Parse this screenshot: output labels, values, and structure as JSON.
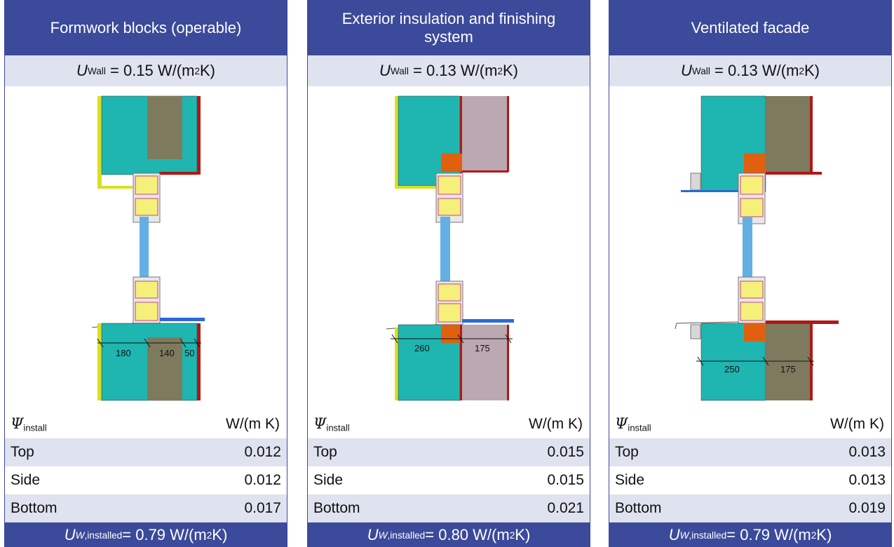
{
  "panels": [
    {
      "title": "Formwork blocks (operable)",
      "u_wall": {
        "sym": "U",
        "sub": "Wall",
        "value": "= 0.15 W/(m",
        "exp": "2",
        "tail": " K)"
      },
      "dims": [
        "180",
        "140",
        "50"
      ],
      "psi": {
        "sym": "Ψ",
        "sub": "install",
        "unit": "W/(m K)"
      },
      "rows": [
        {
          "label": "Top",
          "value": "0.012"
        },
        {
          "label": "Side",
          "value": "0.012"
        },
        {
          "label": "Bottom",
          "value": "0.017"
        }
      ],
      "u_installed": {
        "sym": "U",
        "sub1": "W",
        "sub2": ",installed",
        "value": " = 0.79 W/(m",
        "exp": "2",
        "tail": " K)"
      }
    },
    {
      "title": "Exterior insulation and finishing system",
      "u_wall": {
        "sym": "U",
        "sub": "Wall",
        "value": "= 0.13 W/(m",
        "exp": "2",
        "tail": " K)"
      },
      "dims": [
        "260",
        "175"
      ],
      "psi": {
        "sym": "Ψ",
        "sub": "install",
        "unit": "W/(m K)"
      },
      "rows": [
        {
          "label": "Top",
          "value": "0.015"
        },
        {
          "label": "Side",
          "value": "0.015"
        },
        {
          "label": "Bottom",
          "value": "0.021"
        }
      ],
      "u_installed": {
        "sym": "U",
        "sub1": "W",
        "sub2": ",installed",
        "value": " = 0.80 W/(m",
        "exp": "2",
        "tail": " K)"
      }
    },
    {
      "title": "Ventilated facade",
      "u_wall": {
        "sym": "U",
        "sub": "Wall",
        "value": "= 0.13 W/(m",
        "exp": "2",
        "tail": " K)"
      },
      "dims": [
        "250",
        "175"
      ],
      "psi": {
        "sym": "Ψ",
        "sub": "install",
        "unit": "W/(m K)"
      },
      "rows": [
        {
          "label": "Top",
          "value": "0.013"
        },
        {
          "label": "Side",
          "value": "0.013"
        },
        {
          "label": "Bottom",
          "value": "0.019"
        }
      ],
      "u_installed": {
        "sym": "U",
        "sub1": "W",
        "sub2": ",installed",
        "value": " = 0.79 W/(m",
        "exp": "2",
        "tail": " K)"
      }
    }
  ],
  "colors": {
    "header": "#3b4a9a",
    "stripe": "#dfe2ef",
    "concrete": "#1fb5b0",
    "insulation_brown": "#7e7a5e",
    "eifs_insulation": "#bca8b0",
    "red_finish": "#b01818",
    "yellow_plaster": "#d9e021",
    "orange_block": "#e06010",
    "glass": "#64b0e4",
    "sill_blue": "#2a6ad8",
    "frame_grey": "#c8c8c8"
  }
}
